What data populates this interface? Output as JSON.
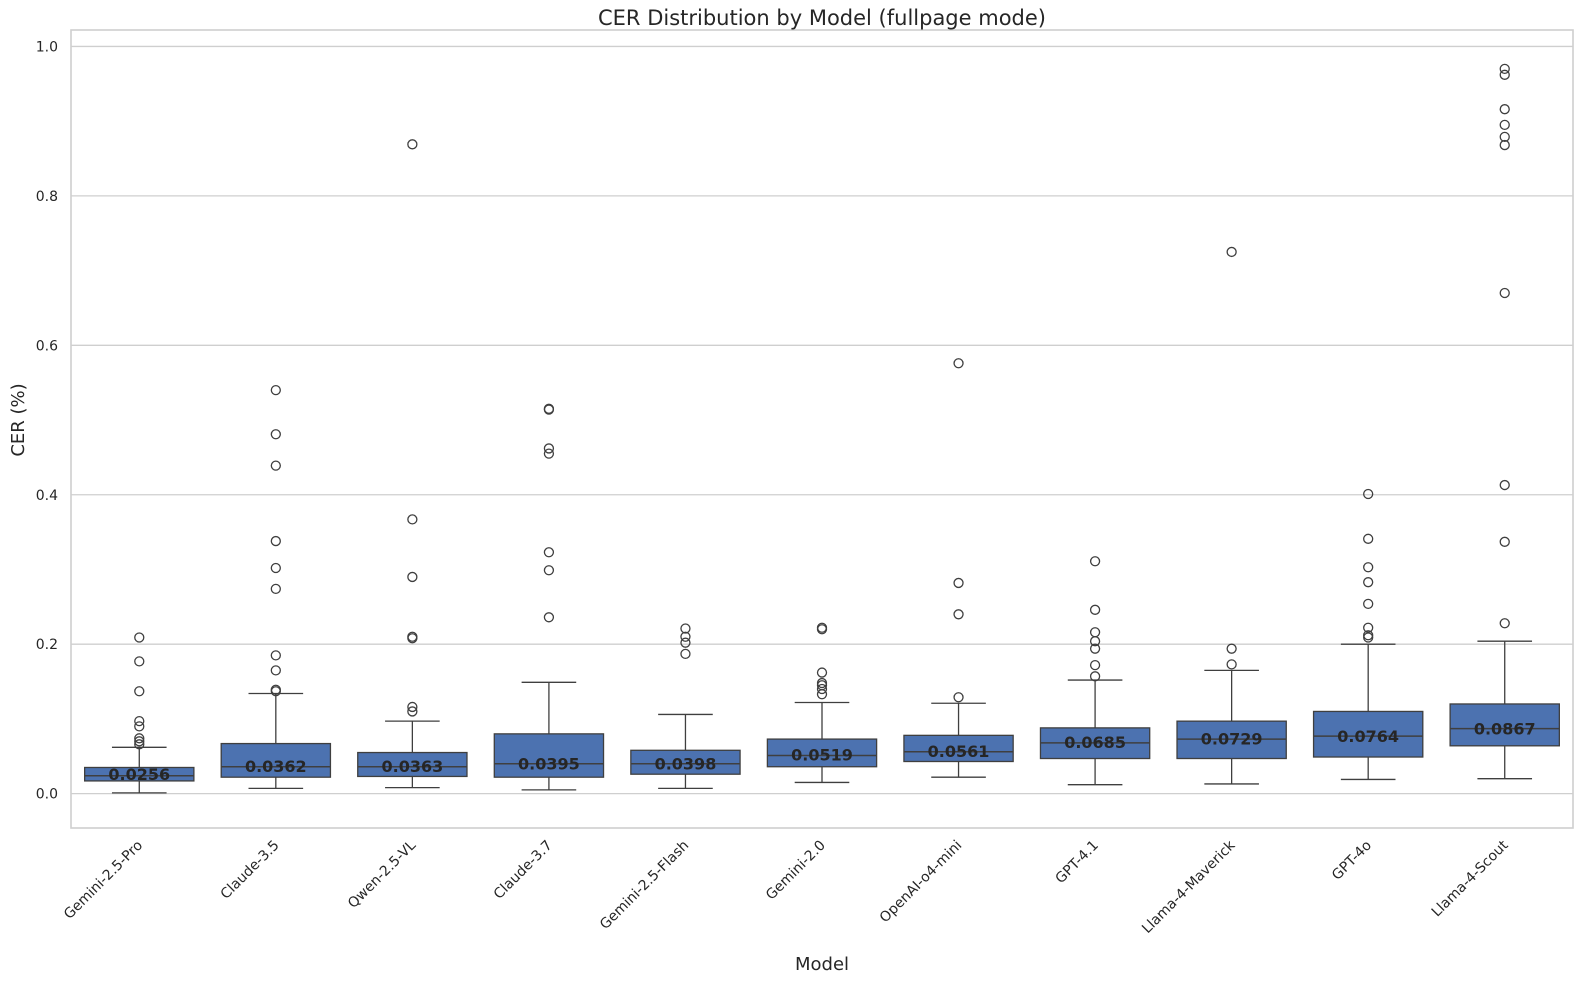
{
  "chart_data": {
    "type": "box",
    "title": "CER Distribution by Model (fullpage mode)",
    "xlabel": "Model",
    "ylabel": "CER (%)",
    "ylim": [
      -0.046,
      1.022
    ],
    "yticks": [
      0.0,
      0.2,
      0.4,
      0.6,
      0.8,
      1.0
    ],
    "ytick_labels": [
      "0.0",
      "0.2",
      "0.4",
      "0.6",
      "0.8",
      "1.0"
    ],
    "grid": true,
    "colors": {
      "box": "#4c72b0",
      "line": "#3f3f3f",
      "grid": "#cfcfcf"
    },
    "categories": [
      "Gemini-2.5-Pro",
      "Claude-3.5",
      "Qwen-2.5-VL",
      "Claude-3.7",
      "Gemini-2.5-Flash",
      "Gemini-2.0",
      "OpenAI-o4-mini",
      "GPT-4.1",
      "Llama-4-Maverick",
      "GPT-4o",
      "Llama-4-Scout"
    ],
    "boxes": [
      {
        "model": "Gemini-2.5-Pro",
        "whislo": 0.001,
        "q1": 0.017,
        "med": 0.024,
        "q3": 0.035,
        "whishi": 0.062,
        "mean": 0.0256,
        "mean_label": "0.0256",
        "fliers": [
          0.066,
          0.07,
          0.074,
          0.09,
          0.097,
          0.137,
          0.177,
          0.209
        ]
      },
      {
        "model": "Claude-3.5",
        "whislo": 0.007,
        "q1": 0.022,
        "med": 0.036,
        "q3": 0.067,
        "whishi": 0.134,
        "mean": 0.0362,
        "mean_label": "0.0362",
        "fliers": [
          0.137,
          0.139,
          0.165,
          0.185,
          0.274,
          0.302,
          0.338,
          0.439,
          0.481,
          0.54
        ]
      },
      {
        "model": "Qwen-2.5-VL",
        "whislo": 0.008,
        "q1": 0.023,
        "med": 0.036,
        "q3": 0.055,
        "whishi": 0.097,
        "mean": 0.0363,
        "mean_label": "0.0363",
        "fliers": [
          0.11,
          0.116,
          0.208,
          0.21,
          0.29,
          0.367,
          0.869
        ]
      },
      {
        "model": "Claude-3.7",
        "whislo": 0.005,
        "q1": 0.022,
        "med": 0.04,
        "q3": 0.08,
        "whishi": 0.149,
        "mean": 0.0395,
        "mean_label": "0.0395",
        "fliers": [
          0.236,
          0.299,
          0.323,
          0.455,
          0.462,
          0.514,
          0.515
        ]
      },
      {
        "model": "Gemini-2.5-Flash",
        "whislo": 0.007,
        "q1": 0.026,
        "med": 0.04,
        "q3": 0.058,
        "whishi": 0.106,
        "mean": 0.0398,
        "mean_label": "0.0398",
        "fliers": [
          0.187,
          0.202,
          0.21,
          0.221
        ]
      },
      {
        "model": "Gemini-2.0",
        "whislo": 0.015,
        "q1": 0.036,
        "med": 0.051,
        "q3": 0.073,
        "whishi": 0.122,
        "mean": 0.0519,
        "mean_label": "0.0519",
        "fliers": [
          0.133,
          0.14,
          0.145,
          0.148,
          0.162,
          0.22,
          0.222
        ]
      },
      {
        "model": "OpenAI-o4-mini",
        "whislo": 0.022,
        "q1": 0.043,
        "med": 0.056,
        "q3": 0.078,
        "whishi": 0.121,
        "mean": 0.0561,
        "mean_label": "0.0561",
        "fliers": [
          0.129,
          0.24,
          0.282,
          0.576
        ]
      },
      {
        "model": "GPT-4.1",
        "whislo": 0.012,
        "q1": 0.047,
        "med": 0.068,
        "q3": 0.088,
        "whishi": 0.152,
        "mean": 0.0685,
        "mean_label": "0.0685",
        "fliers": [
          0.157,
          0.172,
          0.194,
          0.204,
          0.216,
          0.246,
          0.311
        ]
      },
      {
        "model": "Llama-4-Maverick",
        "whislo": 0.013,
        "q1": 0.047,
        "med": 0.073,
        "q3": 0.097,
        "whishi": 0.165,
        "mean": 0.0729,
        "mean_label": "0.0729",
        "fliers": [
          0.173,
          0.194,
          0.725
        ]
      },
      {
        "model": "GPT-4o",
        "whislo": 0.019,
        "q1": 0.049,
        "med": 0.077,
        "q3": 0.11,
        "whishi": 0.2,
        "mean": 0.0764,
        "mean_label": "0.0764",
        "fliers": [
          0.209,
          0.212,
          0.222,
          0.254,
          0.283,
          0.303,
          0.341,
          0.401
        ]
      },
      {
        "model": "Llama-4-Scout",
        "whislo": 0.02,
        "q1": 0.064,
        "med": 0.087,
        "q3": 0.12,
        "whishi": 0.204,
        "mean": 0.0867,
        "mean_label": "0.0867",
        "fliers": [
          0.228,
          0.337,
          0.413,
          0.67,
          0.868,
          0.879,
          0.895,
          0.916,
          0.962,
          0.97
        ]
      }
    ]
  }
}
